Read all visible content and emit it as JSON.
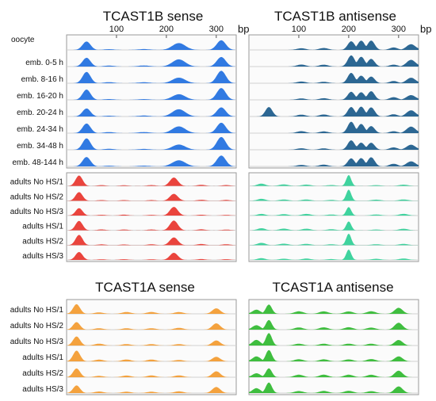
{
  "chart_data": {
    "type": "area",
    "x_unit": "bp",
    "x_ticks": [
      100,
      200,
      300
    ],
    "x_range": [
      0,
      340
    ],
    "panels": [
      {
        "title": "TCAST1B sense",
        "color": "#1f6fe0",
        "tracks": [
          "oocyte",
          "emb. 0-5 h",
          "emb. 8-16 h",
          "emb. 16-20 h",
          "emb. 20-24 h",
          "emb. 24-34 h",
          "emb. 34-48 h",
          "emb. 48-144 h"
        ],
        "peaks": [
          [
            40,
            8,
            0.85
          ],
          [
            85,
            10,
            0.08
          ],
          [
            155,
            12,
            0.08
          ],
          [
            225,
            13,
            0.55
          ],
          [
            310,
            9,
            0.95
          ]
        ]
      },
      {
        "title": "TCAST1B antisense",
        "color": "#1a5a8a",
        "tracks": [
          "oocyte",
          "emb. 0-5 h",
          "emb. 8-16 h",
          "emb. 16-20 h",
          "emb. 20-24 h",
          "emb. 24-34 h",
          "emb. 34-48 h",
          "emb. 48-144 h"
        ],
        "peaks": [
          [
            105,
            9,
            0.15
          ],
          [
            150,
            9,
            0.15
          ],
          [
            205,
            7,
            0.85
          ],
          [
            225,
            7,
            0.75
          ],
          [
            245,
            7,
            0.7
          ],
          [
            290,
            8,
            0.2
          ],
          [
            325,
            9,
            0.5
          ]
        ],
        "extra_peak_track": 4,
        "extra_peak": [
          40,
          7,
          1.0
        ]
      },
      {
        "title": "",
        "color": "#e8342c",
        "tracks": [
          "adults No HS/1",
          "adults No HS/2",
          "adults No HS/3",
          "adults HS/1",
          "adults HS/2",
          "adults HS/3"
        ],
        "peaks": [
          [
            25,
            7,
            0.9
          ],
          [
            70,
            8,
            0.08
          ],
          [
            115,
            8,
            0.08
          ],
          [
            170,
            8,
            0.08
          ],
          [
            215,
            8,
            0.85
          ],
          [
            270,
            8,
            0.1
          ],
          [
            320,
            8,
            0.08
          ]
        ]
      },
      {
        "title": "",
        "color": "#2fcf96",
        "tracks": [
          "adults No HS/1",
          "adults No HS/2",
          "adults No HS/3",
          "adults HS/1",
          "adults HS/2",
          "adults HS/3"
        ],
        "peaks": [
          [
            25,
            8,
            0.2
          ],
          [
            70,
            9,
            0.15
          ],
          [
            115,
            9,
            0.15
          ],
          [
            165,
            9,
            0.1
          ],
          [
            200,
            5,
            1.0
          ],
          [
            255,
            9,
            0.1
          ],
          [
            310,
            9,
            0.15
          ]
        ]
      },
      {
        "title": "TCAST1A sense",
        "color": "#f39a2e",
        "tracks": [
          "adults No HS/1",
          "adults No HS/2",
          "adults No HS/3",
          "adults HS/1",
          "adults HS/2",
          "adults HS/3"
        ],
        "peaks": [
          [
            20,
            7,
            0.85
          ],
          [
            65,
            9,
            0.15
          ],
          [
            120,
            9,
            0.15
          ],
          [
            170,
            9,
            0.15
          ],
          [
            225,
            9,
            0.15
          ],
          [
            300,
            8,
            0.5
          ]
        ]
      },
      {
        "title": "TCAST1A antisense",
        "color": "#2fb82f",
        "tracks": [
          "adults No HS/1",
          "adults No HS/2",
          "adults No HS/3",
          "adults HS/1",
          "adults HS/2",
          "adults HS/3"
        ],
        "peaks": [
          [
            15,
            8,
            0.45
          ],
          [
            40,
            6,
            1.0
          ],
          [
            100,
            9,
            0.2
          ],
          [
            150,
            9,
            0.2
          ],
          [
            200,
            9,
            0.2
          ],
          [
            245,
            9,
            0.2
          ],
          [
            300,
            8,
            0.55
          ]
        ]
      }
    ]
  }
}
